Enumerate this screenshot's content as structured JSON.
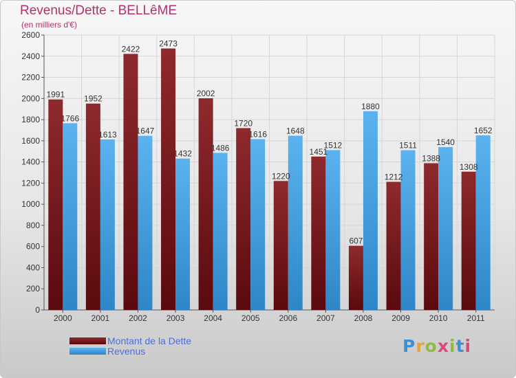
{
  "header": {
    "title": "Revenus/Dette - BELLêME",
    "subtitle": "(en milliers d'€)"
  },
  "colors": {
    "title": "#b4306b",
    "series_dette": "#7a1a1e",
    "series_revenus": "#3d9ee0",
    "legend_text": "#4a6edb"
  },
  "brand": {
    "text": "Proxiti"
  },
  "chart_data": {
    "type": "bar",
    "title": "Revenus/Dette - BELLêME",
    "subtitle": "(en milliers d'€)",
    "xlabel": "",
    "ylabel": "",
    "ylim": [
      0,
      2600
    ],
    "yticks": [
      0,
      200,
      400,
      600,
      800,
      1000,
      1200,
      1400,
      1600,
      1800,
      2000,
      2200,
      2400,
      2600
    ],
    "grid": true,
    "legend_position": "bottom-left",
    "categories": [
      "2000",
      "2001",
      "2002",
      "2003",
      "2004",
      "2005",
      "2006",
      "2007",
      "2008",
      "2009",
      "2010",
      "2011"
    ],
    "series": [
      {
        "name": "Montant de la Dette",
        "values": [
          1991,
          1952,
          2422,
          2473,
          2002,
          1720,
          1220,
          1451,
          607,
          1212,
          1388,
          1308
        ]
      },
      {
        "name": "Revenus",
        "values": [
          1766,
          1613,
          1647,
          1432,
          1486,
          1616,
          1648,
          1512,
          1880,
          1511,
          1540,
          1652
        ]
      }
    ]
  }
}
